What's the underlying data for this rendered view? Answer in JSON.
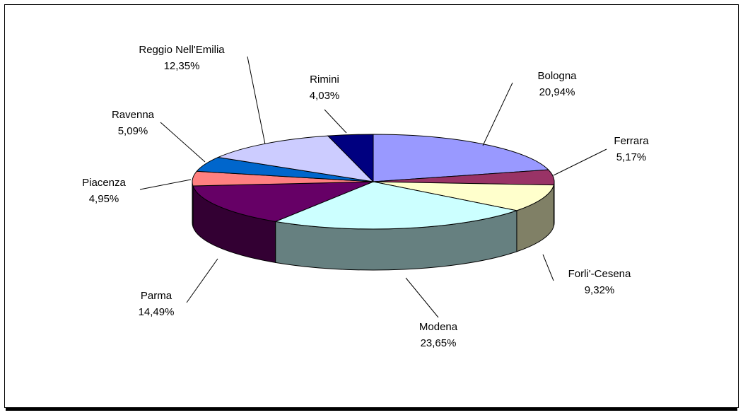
{
  "chart_data": {
    "type": "pie",
    "style": "3d",
    "slices": [
      {
        "name": "Bologna",
        "value_label": "20,94%",
        "value": 20.94,
        "color": "#9999ff",
        "side": "#4d4d80"
      },
      {
        "name": "Ferrara",
        "value_label": "5,17%",
        "value": 5.17,
        "color": "#993366",
        "side": "#4d1a33"
      },
      {
        "name": "Forli'-Cesena",
        "value_label": "9,32%",
        "value": 9.32,
        "color": "#ffffcc",
        "side": "#808066"
      },
      {
        "name": "Modena",
        "value_label": "23,65%",
        "value": 23.65,
        "color": "#ccffff",
        "side": "#668080"
      },
      {
        "name": "Parma",
        "value_label": "14,49%",
        "value": 14.49,
        "color": "#660066",
        "side": "#330033"
      },
      {
        "name": "Piacenza",
        "value_label": "4,95%",
        "value": 4.95,
        "color": "#ff8080",
        "side": "#804040"
      },
      {
        "name": "Ravenna",
        "value_label": "5,09%",
        "value": 5.09,
        "color": "#0066cc",
        "side": "#003366"
      },
      {
        "name": "Reggio Nell'Emilia",
        "value_label": "12,35%",
        "value": 12.35,
        "color": "#ccccff",
        "side": "#666680"
      },
      {
        "name": "Rimini",
        "value_label": "4,03%",
        "value": 4.03,
        "color": "#000080",
        "side": "#000040"
      }
    ],
    "start": "12 o'clock, clockwise",
    "legend": "none"
  }
}
